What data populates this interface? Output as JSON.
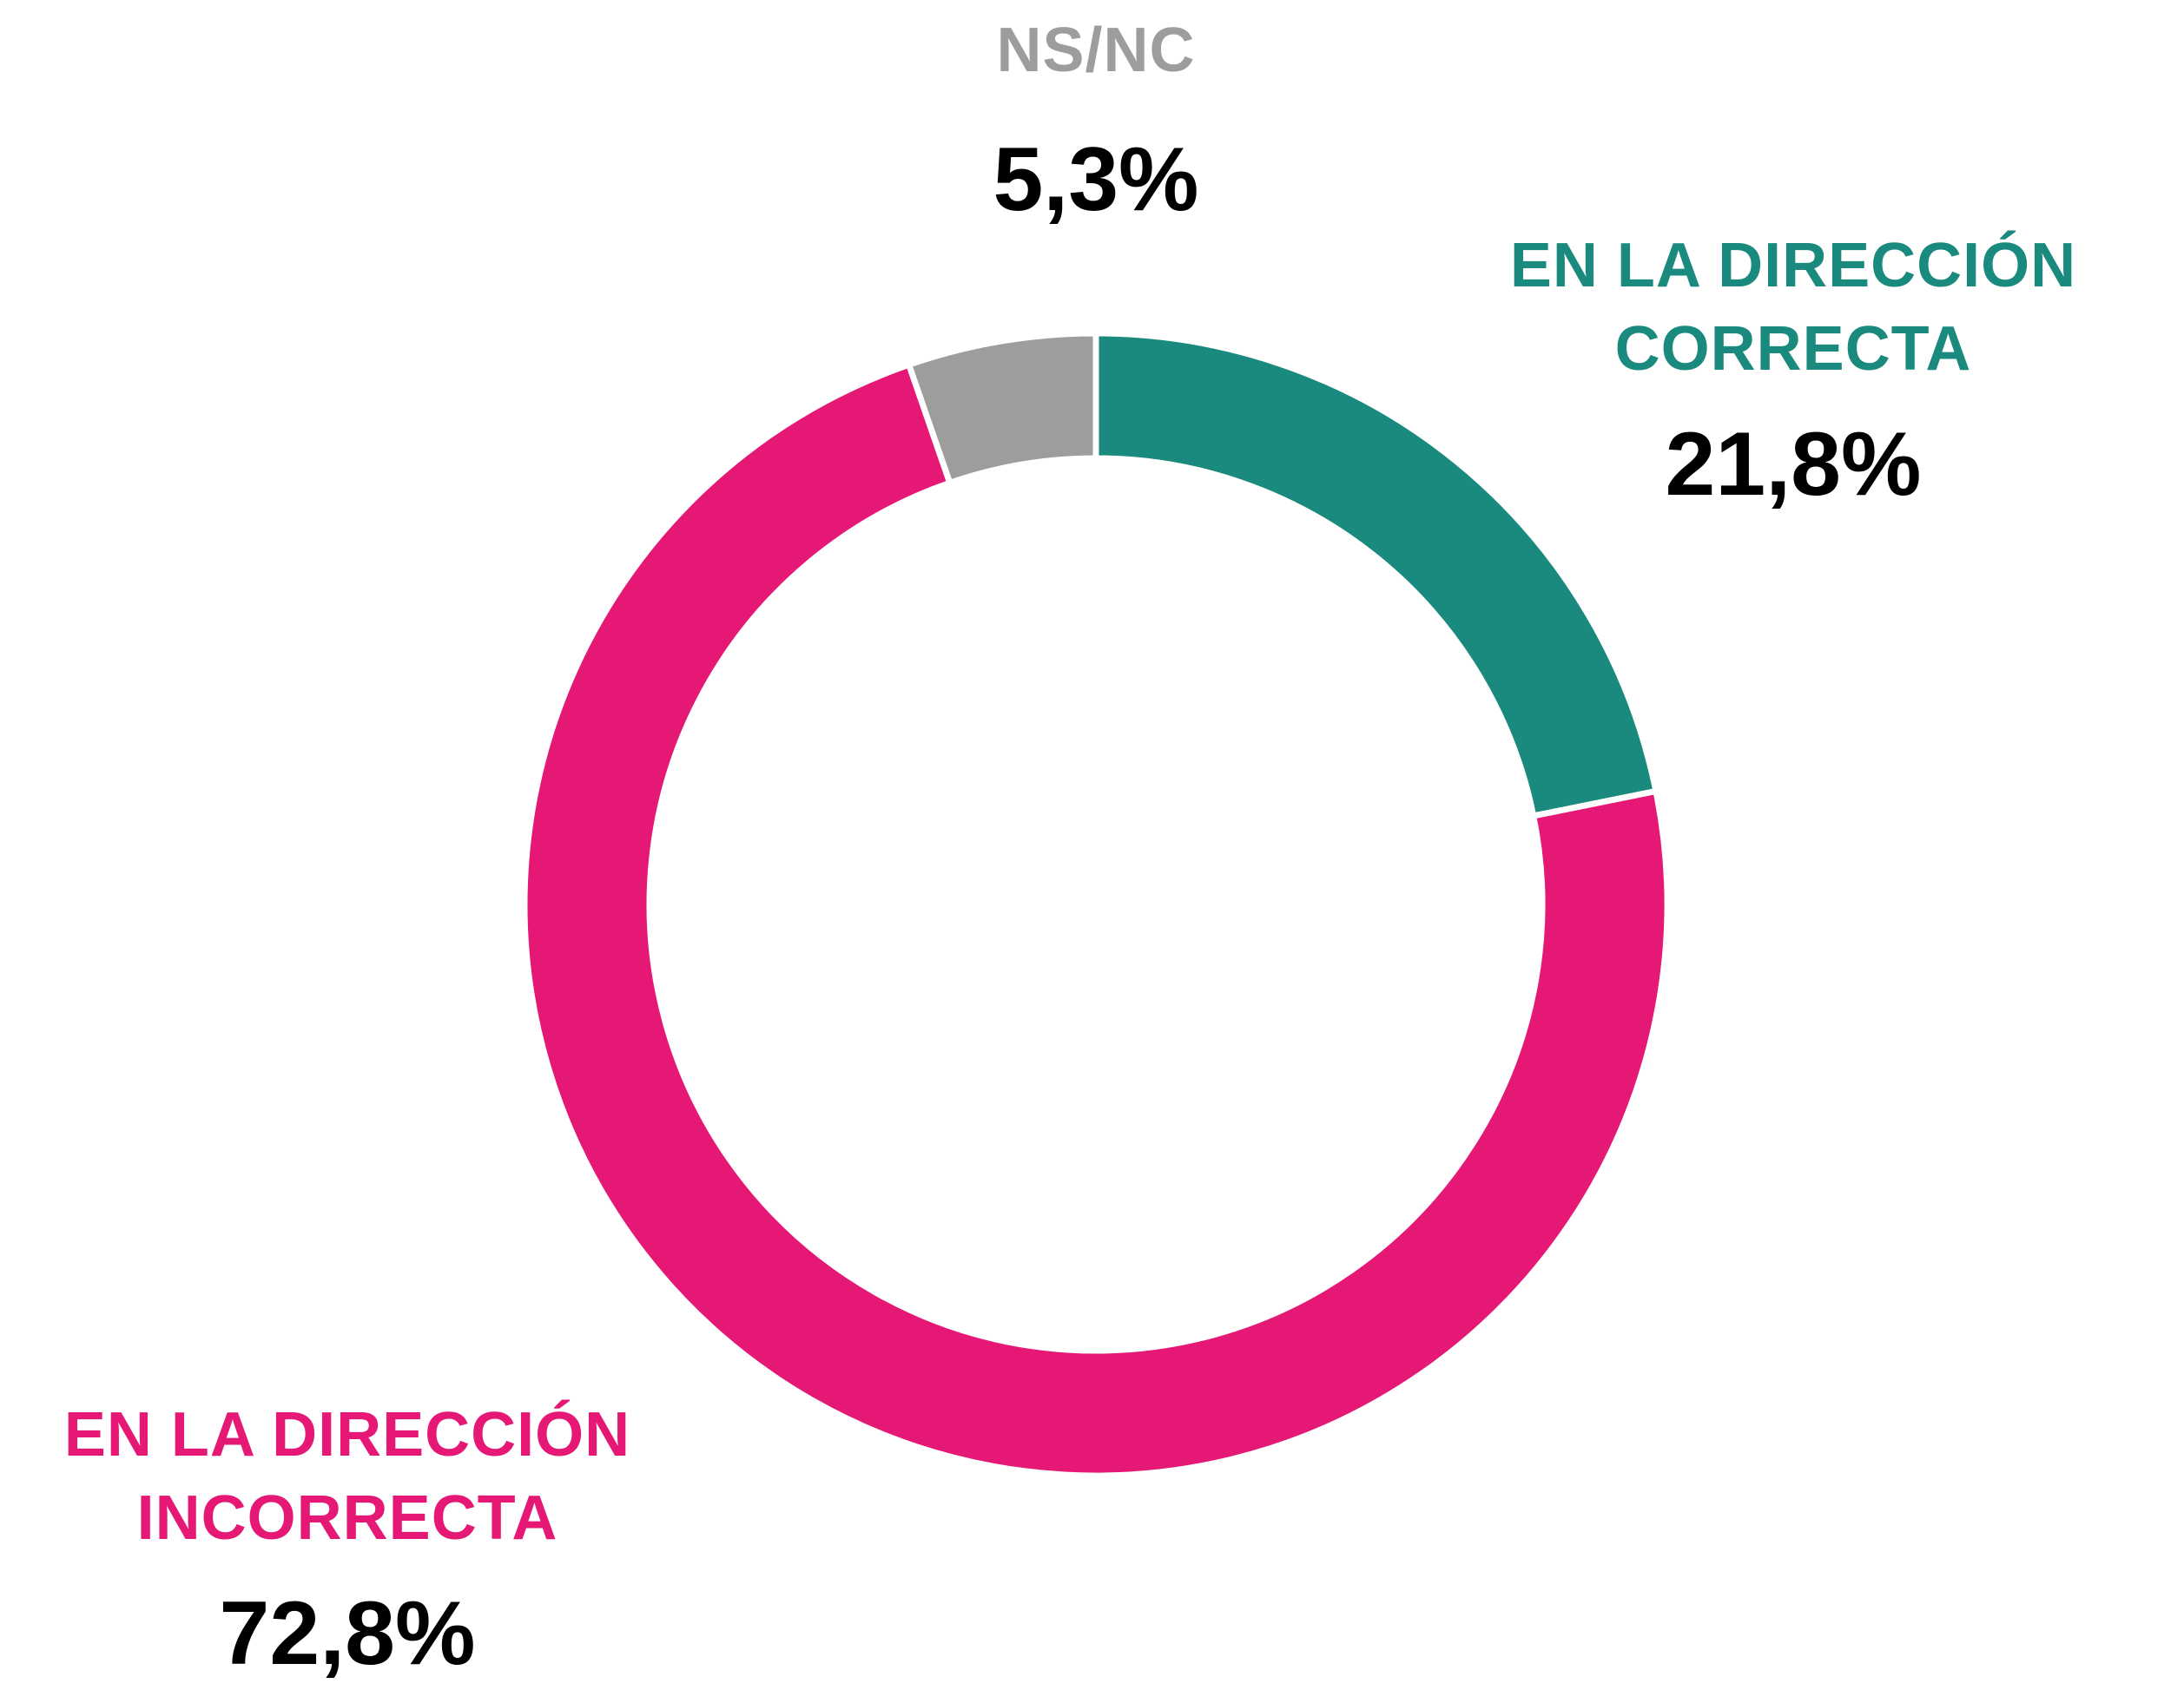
{
  "chart_data": {
    "type": "donut",
    "categories": [
      "EN LA DIRECCIÓN CORRECTA",
      "EN LA DIRECCIÓN INCORRECTA",
      "NS/NC"
    ],
    "values": [
      21.8,
      72.8,
      5.3
    ],
    "value_labels": [
      "21,8%",
      "72,8%",
      "5,3%"
    ],
    "colors": [
      "#1a8a7e",
      "#e51876",
      "#9d9d9c"
    ]
  }
}
